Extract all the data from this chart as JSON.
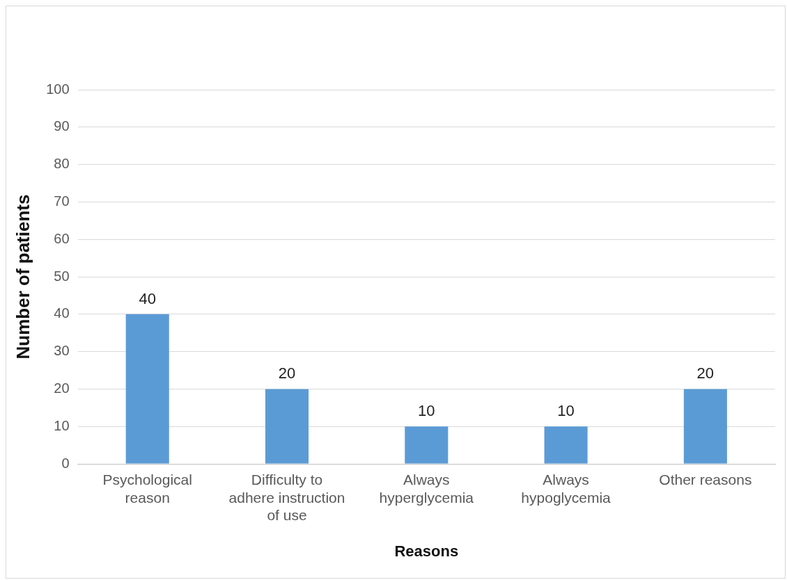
{
  "chart_data": {
    "type": "bar",
    "xlabel": "Reasons",
    "ylabel": "Number of patients",
    "categories": [
      "Psychological reason",
      "Difficulty to adhere instruction of use",
      "Always hyperglycemia",
      "Always hypoglycemia",
      "Other reasons"
    ],
    "values": [
      40,
      20,
      10,
      10,
      20
    ],
    "color": "#5b9bd5",
    "ylim": [
      0,
      100
    ],
    "yticks": [
      0,
      10,
      20,
      30,
      40,
      50,
      60,
      70,
      80,
      90,
      100
    ],
    "grid": "y",
    "data_labels": true,
    "legend": false
  }
}
